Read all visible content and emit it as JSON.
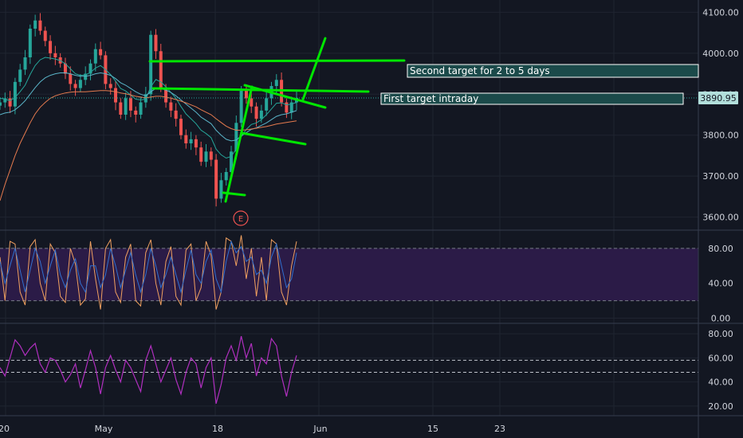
{
  "colors": {
    "background": "#131722",
    "grid": "#1f2430",
    "pane_border": "#363c4e",
    "candle_up": "#26a69a",
    "candle_down": "#ef5350",
    "trendline": "#00e600",
    "ma_fast": "#26a69a",
    "ma_mid": "#5ab4c8",
    "ma_slow": "#e57a4e",
    "current_price_bg": "#b2dfdb",
    "annotation_border": "#ffffff",
    "annotation_fill": "#1b4a4a",
    "stoch_k": "#f0a060",
    "stoch_d": "#3070d0",
    "stoch_band": "#2b1b47",
    "rsi_line": "#b02fbf",
    "earnings_marker": "#ef5350"
  },
  "annotations": {
    "second_target": "Second target for 2 to 5 days",
    "first_target": "First target intraday"
  },
  "earnings_marker_label": "E",
  "current_price_label": "3890.95",
  "chart_data": [
    {
      "type": "line",
      "pane": "price",
      "x_axis_labels": [
        "20",
        "May",
        "18",
        "Jun",
        "15",
        "23"
      ],
      "y_ticks": [
        "4100.00",
        "4000.00",
        "3900.00",
        "3800.00",
        "3700.00",
        "3600.00"
      ],
      "ylim": [
        3570,
        4130
      ],
      "current_price": 3890.95,
      "series": [
        {
          "values": [
            3880,
            3890,
            3870,
            3930,
            3960,
            3990,
            4060,
            4080,
            4055,
            4030,
            4000,
            3990,
            3975,
            3950,
            3925,
            3915,
            3935,
            3950,
            3975,
            4010,
            3995,
            3925,
            3915,
            3880,
            3850,
            3890,
            3860,
            3850,
            3880,
            3900,
            4045,
            4005,
            3915,
            3880,
            3860,
            3840,
            3800,
            3780,
            3790,
            3770,
            3735,
            3760,
            3740,
            3645,
            3690,
            3710,
            3760,
            3830,
            3910,
            3890,
            3870,
            3840,
            3860,
            3890,
            3920,
            3935,
            3880,
            3855,
            3880,
            3890.95
          ]
        },
        {
          "values": [
            3890,
            3888,
            3884,
            3892,
            3906,
            3922,
            3948,
            3970,
            3984,
            3990,
            3988,
            3986,
            3982,
            3974,
            3962,
            3950,
            3946,
            3947,
            3953,
            3964,
            3970,
            3960,
            3948,
            3932,
            3914,
            3908,
            3898,
            3888,
            3886,
            3888,
            3918,
            3936,
            3930,
            3918,
            3904,
            3890,
            3870,
            3852,
            3840,
            3828,
            3812,
            3804,
            3794,
            3766,
            3752,
            3744,
            3748,
            3766,
            3796,
            3814,
            3826,
            3830,
            3838,
            3850,
            3864,
            3878,
            3879,
            3874,
            3876,
            3880
          ]
        },
        {
          "values": [
            3850,
            3854,
            3856,
            3862,
            3872,
            3884,
            3900,
            3916,
            3930,
            3940,
            3946,
            3950,
            3952,
            3952,
            3950,
            3946,
            3944,
            3944,
            3946,
            3950,
            3952,
            3950,
            3946,
            3938,
            3928,
            3922,
            3914,
            3906,
            3900,
            3896,
            3906,
            3914,
            3914,
            3910,
            3904,
            3896,
            3886,
            3876,
            3866,
            3856,
            3844,
            3836,
            3828,
            3812,
            3800,
            3790,
            3786,
            3788,
            3798,
            3806,
            3814,
            3818,
            3824,
            3830,
            3838,
            3846,
            3850,
            3852,
            3856,
            3860
          ]
        },
        {
          "values": [
            3640,
            3680,
            3715,
            3750,
            3780,
            3805,
            3830,
            3852,
            3868,
            3880,
            3890,
            3896,
            3900,
            3903,
            3905,
            3906,
            3906,
            3906,
            3907,
            3908,
            3909,
            3909,
            3908,
            3906,
            3903,
            3901,
            3898,
            3895,
            3893,
            3891,
            3893,
            3895,
            3895,
            3893,
            3890,
            3887,
            3883,
            3879,
            3874,
            3869,
            3862,
            3856,
            3850,
            3840,
            3831,
            3822,
            3816,
            3812,
            3812,
            3813,
            3815,
            3817,
            3819,
            3821,
            3824,
            3827,
            3829,
            3831,
            3833,
            3835
          ]
        }
      ]
    },
    {
      "type": "line",
      "pane": "stochastic",
      "y_ticks": [
        "80.00",
        "40.00",
        "0.00"
      ],
      "ylim": [
        -5,
        100
      ],
      "band": [
        20,
        80
      ],
      "series": [
        {
          "values": [
            70,
            20,
            88,
            85,
            30,
            15,
            82,
            90,
            40,
            20,
            85,
            75,
            25,
            18,
            80,
            62,
            15,
            22,
            88,
            45,
            10,
            80,
            90,
            30,
            18,
            70,
            85,
            20,
            14,
            75,
            90,
            40,
            15,
            65,
            82,
            25,
            15,
            78,
            85,
            20,
            35,
            88,
            72,
            10,
            30,
            92,
            88,
            60,
            95,
            45,
            80,
            25,
            70,
            20,
            90,
            85,
            30,
            15,
            60,
            88
          ]
        },
        {
          "values": [
            65,
            40,
            60,
            80,
            55,
            30,
            55,
            80,
            65,
            40,
            60,
            78,
            50,
            35,
            55,
            68,
            40,
            30,
            60,
            60,
            35,
            50,
            80,
            60,
            35,
            55,
            75,
            50,
            30,
            50,
            80,
            60,
            35,
            50,
            70,
            50,
            30,
            55,
            78,
            50,
            40,
            65,
            78,
            45,
            30,
            65,
            88,
            75,
            82,
            65,
            70,
            50,
            55,
            40,
            70,
            85,
            60,
            35,
            45,
            75
          ]
        }
      ]
    },
    {
      "type": "line",
      "pane": "rsi",
      "y_ticks": [
        "80.00",
        "60.00",
        "40.00",
        "20.00"
      ],
      "ylim": [
        12,
        88
      ],
      "levels": [
        58,
        48
      ],
      "series": [
        {
          "values": [
            52,
            45,
            60,
            75,
            70,
            62,
            68,
            72,
            55,
            48,
            60,
            58,
            50,
            40,
            46,
            55,
            35,
            50,
            66,
            52,
            30,
            52,
            62,
            50,
            40,
            58,
            52,
            42,
            32,
            58,
            70,
            55,
            40,
            50,
            60,
            42,
            30,
            48,
            60,
            55,
            35,
            52,
            60,
            22,
            38,
            60,
            70,
            58,
            78,
            60,
            72,
            45,
            60,
            55,
            76,
            70,
            45,
            28,
            48,
            62
          ]
        }
      ]
    }
  ]
}
